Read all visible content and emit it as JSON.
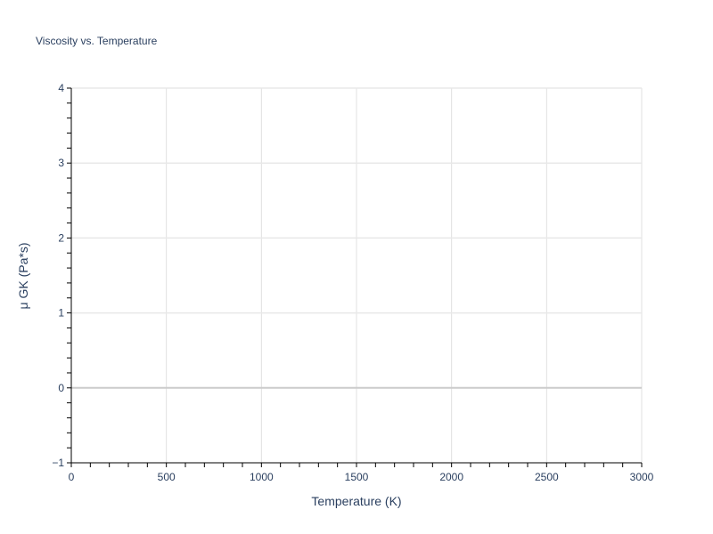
{
  "chart_data": {
    "type": "scatter",
    "title": "Viscosity vs. Temperature",
    "xlabel": "Temperature (K)",
    "ylabel": "μ GK (Pa*s)",
    "xlim": [
      0,
      3000
    ],
    "ylim": [
      -1,
      4
    ],
    "x_ticks": [
      "0",
      "500",
      "1000",
      "1500",
      "2000",
      "2500",
      "3000"
    ],
    "y_ticks": [
      "−1",
      "0",
      "1",
      "2",
      "3",
      "4"
    ],
    "grid": true,
    "series": []
  }
}
